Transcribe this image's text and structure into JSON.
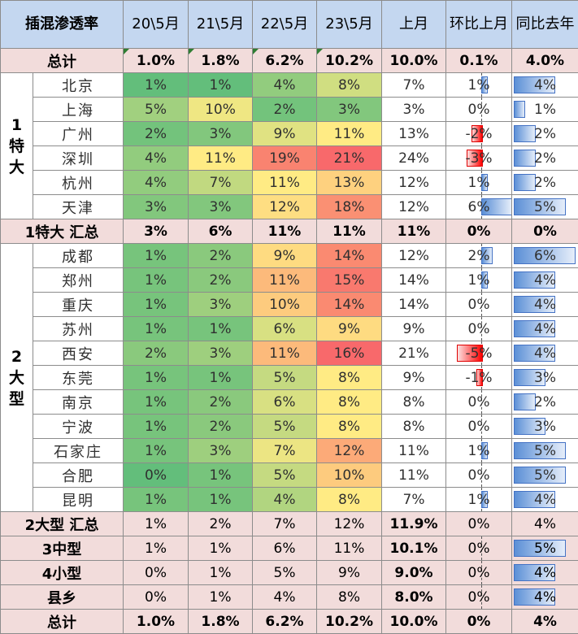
{
  "title": "插混渗透率",
  "headers": [
    "20\\5月",
    "21\\5月",
    "22\\5月",
    "23\\5月",
    "上月",
    "环比上月",
    "同比去年"
  ],
  "total_top": {
    "label": "总计",
    "values": [
      "1.0%",
      "1.8%",
      "6.2%",
      "10.2%",
      "10.0%",
      "0.1%",
      "4.0%"
    ]
  },
  "group1": {
    "label": "1特大",
    "rows": [
      {
        "city": "北京",
        "values": [
          "1%",
          "1%",
          "4%",
          "8%",
          "7%"
        ],
        "mom": "1%",
        "yoy": "4%"
      },
      {
        "city": "上海",
        "values": [
          "5%",
          "10%",
          "2%",
          "3%",
          "3%"
        ],
        "mom": "0%",
        "yoy": "1%"
      },
      {
        "city": "广州",
        "values": [
          "2%",
          "3%",
          "9%",
          "11%",
          "13%"
        ],
        "mom": "-2%",
        "yoy": "2%"
      },
      {
        "city": "深圳",
        "values": [
          "4%",
          "11%",
          "19%",
          "21%",
          "24%"
        ],
        "mom": "-3%",
        "yoy": "2%"
      },
      {
        "city": "杭州",
        "values": [
          "4%",
          "7%",
          "11%",
          "13%",
          "12%"
        ],
        "mom": "1%",
        "yoy": "2%"
      },
      {
        "city": "天津",
        "values": [
          "3%",
          "3%",
          "12%",
          "18%",
          "12%"
        ],
        "mom": "6%",
        "yoy": "5%"
      }
    ],
    "summary": {
      "label": "1特大 汇总",
      "values": [
        "3%",
        "6%",
        "11%",
        "11%",
        "11%",
        "0%",
        "0%"
      ]
    }
  },
  "group2": {
    "label": "2大型",
    "rows": [
      {
        "city": "成都",
        "values": [
          "1%",
          "2%",
          "9%",
          "14%",
          "12%"
        ],
        "mom": "2%",
        "yoy": "6%"
      },
      {
        "city": "郑州",
        "values": [
          "1%",
          "2%",
          "11%",
          "15%",
          "14%"
        ],
        "mom": "1%",
        "yoy": "4%"
      },
      {
        "city": "重庆",
        "values": [
          "1%",
          "3%",
          "10%",
          "14%",
          "14%"
        ],
        "mom": "0%",
        "yoy": "4%"
      },
      {
        "city": "苏州",
        "values": [
          "1%",
          "1%",
          "6%",
          "9%",
          "9%"
        ],
        "mom": "0%",
        "yoy": "4%"
      },
      {
        "city": "西安",
        "values": [
          "2%",
          "3%",
          "11%",
          "16%",
          "21%"
        ],
        "mom": "-5%",
        "yoy": "4%"
      },
      {
        "city": "东莞",
        "values": [
          "1%",
          "1%",
          "5%",
          "8%",
          "9%"
        ],
        "mom": "-1%",
        "yoy": "3%"
      },
      {
        "city": "南京",
        "values": [
          "1%",
          "2%",
          "6%",
          "8%",
          "8%"
        ],
        "mom": "0%",
        "yoy": "2%"
      },
      {
        "city": "宁波",
        "values": [
          "1%",
          "2%",
          "5%",
          "8%",
          "8%"
        ],
        "mom": "0%",
        "yoy": "3%"
      },
      {
        "city": "石家庄",
        "values": [
          "1%",
          "3%",
          "7%",
          "12%",
          "11%"
        ],
        "mom": "1%",
        "yoy": "5%"
      },
      {
        "city": "合肥",
        "values": [
          "0%",
          "1%",
          "5%",
          "10%",
          "11%"
        ],
        "mom": "0%",
        "yoy": "5%"
      },
      {
        "city": "昆明",
        "values": [
          "1%",
          "1%",
          "4%",
          "8%",
          "7%"
        ],
        "mom": "1%",
        "yoy": "4%"
      }
    ],
    "summary": {
      "label": "2大型 汇总",
      "values": [
        "1%",
        "2%",
        "7%",
        "12%",
        "11.9%",
        "0%",
        "4%"
      ]
    }
  },
  "tiers": [
    {
      "label": "3中型",
      "values": [
        "1%",
        "1%",
        "6%",
        "11%",
        "10.1%",
        "0%",
        "5%"
      ]
    },
    {
      "label": "4小型",
      "values": [
        "0%",
        "1%",
        "5%",
        "9%",
        "9.0%",
        "0%",
        "4%"
      ]
    },
    {
      "label": "县乡",
      "values": [
        "0%",
        "1%",
        "4%",
        "8%",
        "8.0%",
        "0%",
        "4%"
      ]
    }
  ],
  "total_bottom": {
    "label": "总计",
    "values": [
      "1.0%",
      "1.8%",
      "6.2%",
      "10.2%",
      "10.0%",
      "0%",
      "4%"
    ]
  },
  "colors": {
    "header_bg": "#c4d7f0",
    "summary_bg": "#f2dcdb",
    "title_text": "#ff0000",
    "heat_low": "#63be7b",
    "heat_mid": "#ffeb84",
    "heat_high": "#f8696b",
    "bar_positive": "#5b8fd6",
    "bar_negative": "#ff0000"
  }
}
